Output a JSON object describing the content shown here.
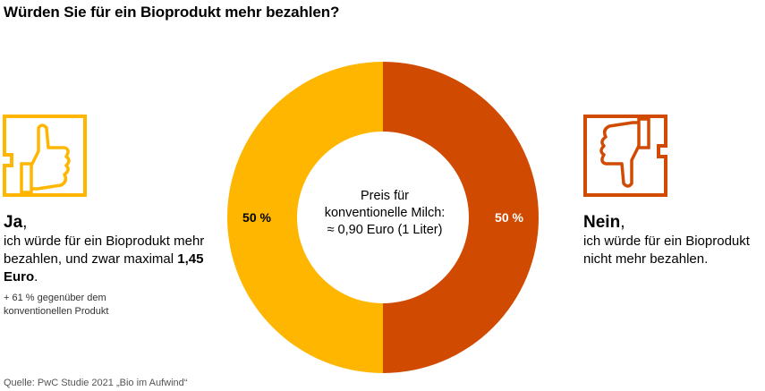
{
  "title": "Würden Sie für ein Bioprodukt mehr bezahlen?",
  "yes": {
    "head": "Ja",
    "comma": ",",
    "text_prefix": "ich würde für ein Bioprodukt mehr bezahlen, und zwar maximal ",
    "price": "1,45 Euro",
    "period": ".",
    "note": "+ 61 % gegenüber dem konventionellen Produkt",
    "icon": "thumbs-up-icon",
    "color": "#FFB600"
  },
  "no": {
    "head": "Nein",
    "comma": ",",
    "text": "ich würde für ein Bioprodukt nicht mehr bezahlen.",
    "icon": "thumbs-down-icon",
    "color": "#D04A02"
  },
  "center": {
    "line1": "Preis für",
    "line2": "konventionelle Milch:",
    "line3": "≈ 0,90 Euro (1 Liter)"
  },
  "source": "Quelle: PwC Studie 2021 „Bio im Aufwind“",
  "chart_data": {
    "type": "pie",
    "style": "donut",
    "categories": [
      "Ja",
      "Nein"
    ],
    "values": [
      50,
      50
    ],
    "labels": [
      "50 %",
      "50 %"
    ],
    "colors": [
      "#FFB600",
      "#D04A02"
    ]
  }
}
